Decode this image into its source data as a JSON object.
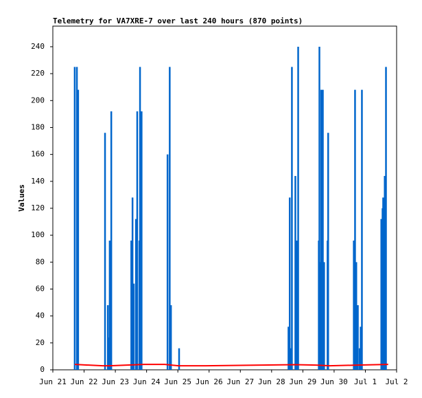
{
  "chart_data": {
    "type": "line",
    "title": "Telemetry for VA7XRE-7 over last 240 hours (870 points)",
    "y_label": "Values",
    "xlim": [
      0,
      11
    ],
    "xticks": [
      {
        "value": 0,
        "label": "Jun 21"
      },
      {
        "value": 1,
        "label": "Jun 22"
      },
      {
        "value": 2,
        "label": "Jun 23"
      },
      {
        "value": 3,
        "label": "Jun 24"
      },
      {
        "value": 4,
        "label": "Jun 25"
      },
      {
        "value": 5,
        "label": "Jun 26"
      },
      {
        "value": 6,
        "label": "Jun 27"
      },
      {
        "value": 7,
        "label": "Jun 28"
      },
      {
        "value": 8,
        "label": "Jun 29"
      },
      {
        "value": 9,
        "label": "Jun 30"
      },
      {
        "value": 10,
        "label": "Jul 1"
      },
      {
        "value": 11,
        "label": "Jul 2"
      }
    ],
    "ylim": [
      0,
      255.3
    ],
    "yticks": [
      0,
      20,
      40,
      60,
      80,
      100,
      120,
      140,
      160,
      180,
      200,
      220,
      240
    ],
    "grid": false,
    "series": [
      {
        "color": "#0066cc",
        "kind": "impulse",
        "x": [
          0.7,
          0.77,
          0.81,
          1.67,
          1.76,
          1.8,
          1.82,
          1.87,
          2.51,
          2.55,
          2.59,
          2.66,
          2.7,
          2.77,
          2.79,
          2.84,
          3.67,
          3.74,
          3.78,
          4.04,
          7.54,
          7.58,
          7.6,
          7.65,
          7.76,
          7.8,
          7.85,
          8.51,
          8.53,
          8.57,
          8.59,
          8.64,
          8.68,
          8.79,
          8.81,
          9.63,
          9.67,
          9.71,
          9.76,
          9.82,
          9.85,
          9.89,
          10.51,
          10.55,
          10.57,
          10.62,
          10.66
        ],
        "values": [
          225,
          225,
          208,
          176,
          48,
          24,
          96,
          192,
          96,
          128,
          64,
          112,
          192,
          96,
          225,
          192,
          160,
          225,
          48,
          16,
          32,
          128,
          16,
          225,
          144,
          96,
          240,
          96,
          240,
          80,
          208,
          208,
          80,
          96,
          176,
          96,
          208,
          80,
          48,
          16,
          32,
          208,
          112,
          120,
          128,
          144,
          225
        ]
      },
      {
        "color": "#ff0000",
        "kind": "line",
        "x": [
          0.7,
          1.6,
          1.82,
          2.37,
          2.92,
          3.58,
          4.02,
          4.9,
          6.66,
          7.76,
          8.42,
          8.86,
          9.74,
          10.73
        ],
        "values": [
          4,
          3,
          3,
          3.5,
          4,
          4,
          3,
          3,
          3.5,
          3.8,
          3.5,
          3,
          3.5,
          4
        ]
      }
    ]
  }
}
